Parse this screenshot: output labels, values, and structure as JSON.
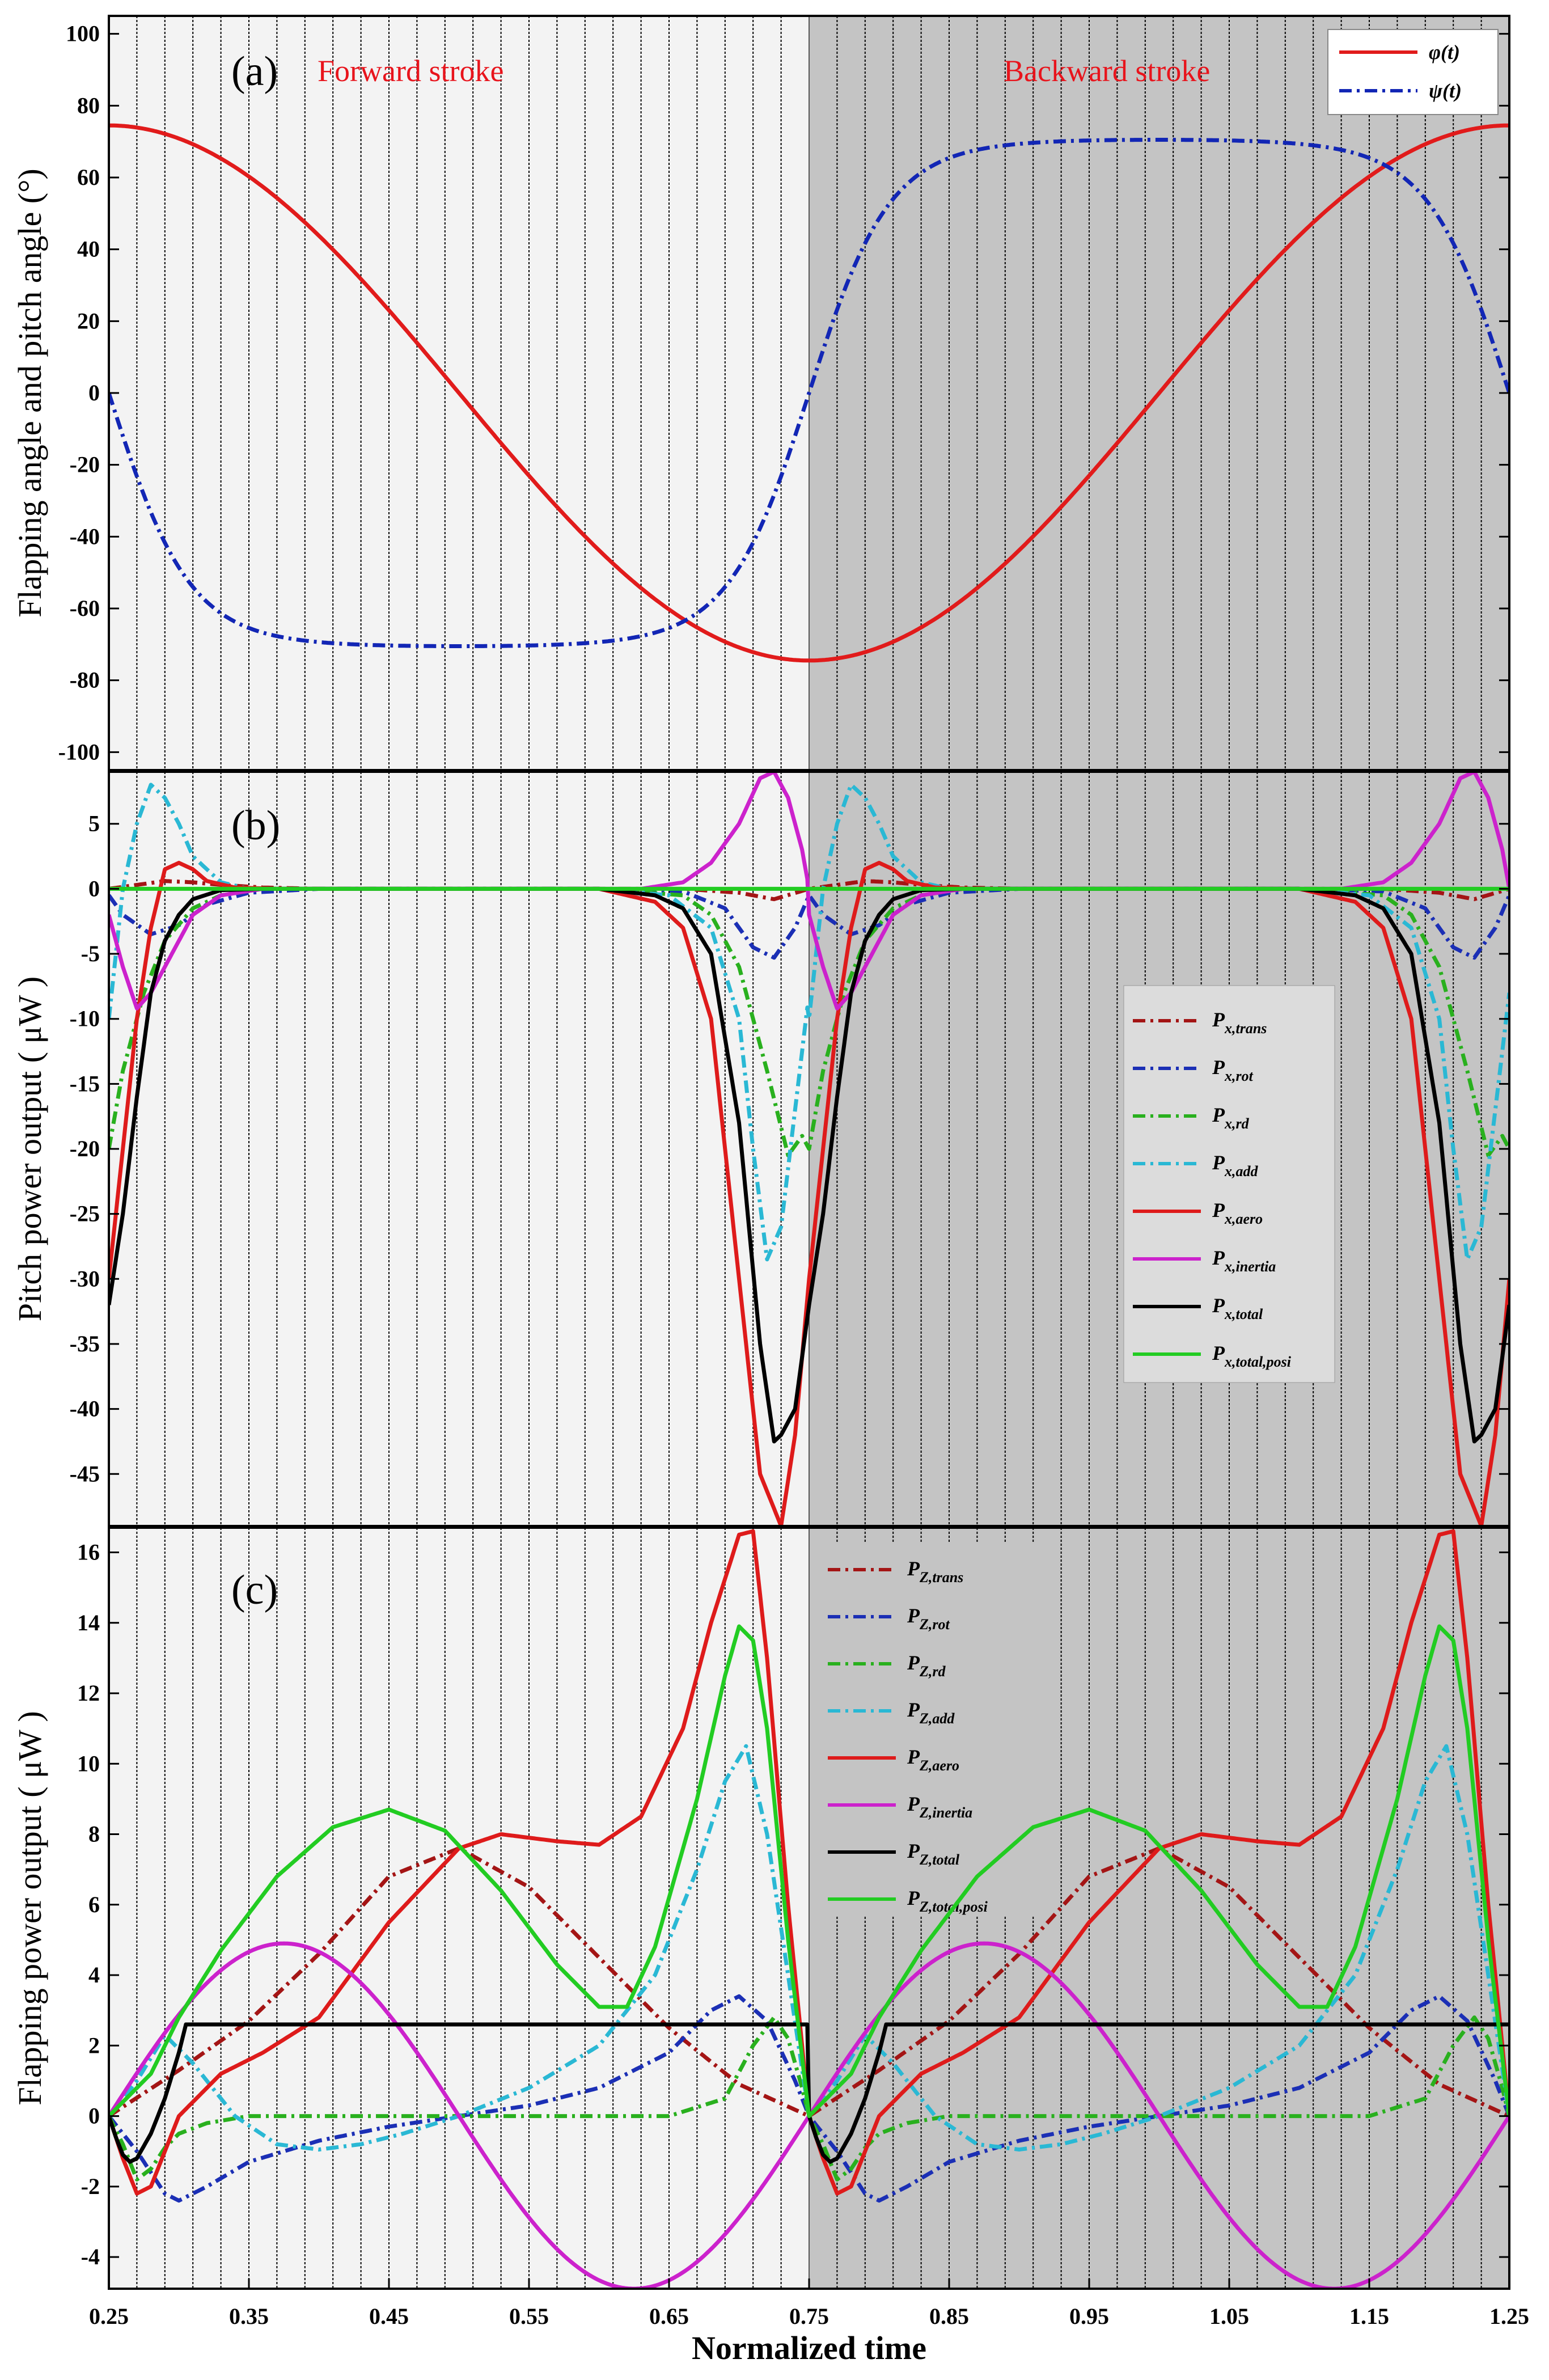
{
  "chart_data": [
    {
      "panel": "a",
      "type": "line",
      "panel_label": "(a)",
      "annotations": [
        "Forward stroke",
        "Backward stroke"
      ],
      "xlim": [
        0.25,
        1.25
      ],
      "ylim": [
        -105,
        105
      ],
      "yticks": [
        "100",
        "80",
        "60",
        "40",
        "20",
        "0",
        "-20",
        "-40",
        "-60",
        "-80",
        "-100"
      ],
      "ylabel": "Flapping angle and pitch angle (°)",
      "legend_position": "top-right",
      "series": [
        {
          "name": "φ(t)",
          "sub": "",
          "color": "#e11b1b",
          "dash": "solid",
          "model": "cos",
          "amp": 74.5,
          "phase": 0.25
        },
        {
          "name": "ψ(t)",
          "sub": "",
          "color": "#1226b5",
          "dash": "dashdot",
          "model": "tanhsin",
          "amp": 70.5,
          "k": 2.7
        }
      ]
    },
    {
      "panel": "b",
      "type": "line",
      "panel_label": "(b)",
      "xlim": [
        0.25,
        1.25
      ],
      "ylim": [
        -49,
        9
      ],
      "yticks": [
        "5",
        "0",
        "-5",
        "-10",
        "-15",
        "-20",
        "-25",
        "-30",
        "-35",
        "-40",
        "-45"
      ],
      "ylabel": "Pitch power output ( μW )",
      "legend_position": "center-right",
      "series": [
        {
          "name": "P",
          "sub": "x,trans",
          "color": "#a41515",
          "dash": "dashdot",
          "x": [
            0.25,
            0.27,
            0.29,
            0.31,
            0.33,
            0.36,
            0.4,
            0.5,
            0.6,
            0.66,
            0.7,
            0.725,
            0.75
          ],
          "y": [
            0,
            0.3,
            0.6,
            0.5,
            0.3,
            0.1,
            0,
            0,
            0,
            0,
            -0.3,
            -0.8,
            0
          ]
        },
        {
          "name": "P",
          "sub": "x,rot",
          "color": "#1b2fb5",
          "dash": "dashdot",
          "x": [
            0.25,
            0.26,
            0.28,
            0.3,
            0.32,
            0.35,
            0.4,
            0.5,
            0.6,
            0.66,
            0.69,
            0.71,
            0.725,
            0.74,
            0.75
          ],
          "y": [
            -0.5,
            -2,
            -3.5,
            -2.8,
            -1.2,
            -0.3,
            0,
            0,
            0,
            -0.2,
            -1.5,
            -4.5,
            -5.3,
            -3,
            -0.5
          ]
        },
        {
          "name": "P",
          "sub": "x,rd",
          "color": "#29b01e",
          "dash": "dashdot",
          "x": [
            0.25,
            0.26,
            0.275,
            0.29,
            0.31,
            0.33,
            0.36,
            0.4,
            0.5,
            0.6,
            0.66,
            0.68,
            0.7,
            0.72,
            0.735,
            0.745,
            0.75
          ],
          "y": [
            -20,
            -14,
            -8,
            -4,
            -1.5,
            -0.5,
            0,
            0,
            0,
            0,
            -0.5,
            -2,
            -6,
            -14,
            -20.5,
            -19,
            -20
          ]
        },
        {
          "name": "P",
          "sub": "x,add",
          "color": "#2ab8d4",
          "dash": "dashdot",
          "x": [
            0.25,
            0.26,
            0.27,
            0.28,
            0.29,
            0.3,
            0.31,
            0.33,
            0.35,
            0.4,
            0.5,
            0.6,
            0.65,
            0.68,
            0.7,
            0.71,
            0.72,
            0.73,
            0.74,
            0.75
          ],
          "y": [
            -10,
            0,
            5,
            8,
            7,
            5,
            2.5,
            0.5,
            0,
            0,
            0,
            0,
            -0.5,
            -3,
            -10,
            -20,
            -28.5,
            -26,
            -17,
            -8
          ]
        },
        {
          "name": "P",
          "sub": "x,aero",
          "color": "#de1b1b",
          "dash": "solid",
          "x": [
            0.25,
            0.26,
            0.27,
            0.28,
            0.29,
            0.3,
            0.31,
            0.32,
            0.34,
            0.37,
            0.4,
            0.5,
            0.6,
            0.64,
            0.66,
            0.68,
            0.7,
            0.715,
            0.73,
            0.74,
            0.75
          ],
          "y": [
            -30,
            -20,
            -10,
            -3,
            1.5,
            2,
            1.5,
            0.6,
            0.1,
            0,
            0,
            0,
            0,
            -1,
            -3,
            -10,
            -30,
            -45,
            -49,
            -42,
            -30
          ]
        },
        {
          "name": "P",
          "sub": "x,inertia",
          "color": "#cc22cc",
          "dash": "solid",
          "x": [
            0.25,
            0.26,
            0.27,
            0.28,
            0.29,
            0.3,
            0.31,
            0.33,
            0.36,
            0.4,
            0.5,
            0.6,
            0.63,
            0.66,
            0.68,
            0.7,
            0.715,
            0.725,
            0.735,
            0.745,
            0.75
          ],
          "y": [
            -2,
            -6,
            -9.2,
            -8,
            -6,
            -4,
            -2,
            -0.5,
            0,
            0,
            0,
            0,
            0,
            0.5,
            2,
            5,
            8.5,
            9,
            7,
            3,
            0
          ]
        },
        {
          "name": "P",
          "sub": "x,total",
          "color": "#000000",
          "dash": "solid",
          "x": [
            0.25,
            0.26,
            0.27,
            0.28,
            0.29,
            0.3,
            0.31,
            0.33,
            0.36,
            0.4,
            0.5,
            0.6,
            0.64,
            0.66,
            0.68,
            0.7,
            0.715,
            0.725,
            0.73,
            0.74,
            0.75
          ],
          "y": [
            -32,
            -25,
            -16,
            -8,
            -4,
            -2,
            -0.8,
            -0.1,
            0,
            0,
            0,
            0,
            -0.5,
            -1.5,
            -5,
            -18,
            -35,
            -42.5,
            -42,
            -40,
            -32
          ]
        },
        {
          "name": "P",
          "sub": "x,total,posi",
          "color": "#22cc22",
          "dash": "solid",
          "x": [
            0.25,
            0.75
          ],
          "y": [
            0,
            0
          ]
        }
      ]
    },
    {
      "panel": "c",
      "type": "line",
      "panel_label": "(c)",
      "xlim": [
        0.25,
        1.25
      ],
      "ylim": [
        -4.9,
        16.7
      ],
      "xticks": [
        "0.25",
        "0.35",
        "0.45",
        "0.55",
        "0.65",
        "0.75",
        "0.85",
        "0.95",
        "1.05",
        "1.15",
        "1.25"
      ],
      "yticks": [
        "16",
        "14",
        "12",
        "10",
        "8",
        "6",
        "4",
        "2",
        "0",
        "-2",
        "-4"
      ],
      "ylabel": "Flapping power output ( μW )",
      "xlabel": "Normalized time",
      "legend_position": "top-center",
      "series": [
        {
          "name": "P",
          "sub": "Z,trans",
          "color": "#a41515",
          "dash": "dashdot",
          "x": [
            0.25,
            0.3,
            0.35,
            0.4,
            0.45,
            0.5,
            0.55,
            0.6,
            0.65,
            0.7,
            0.75
          ],
          "y": [
            0,
            1.3,
            2.7,
            4.6,
            6.8,
            7.6,
            6.5,
            4.5,
            2.5,
            0.9,
            0
          ]
        },
        {
          "name": "P",
          "sub": "Z,rot",
          "color": "#1b2fb5",
          "dash": "dashdot",
          "x": [
            0.25,
            0.27,
            0.29,
            0.3,
            0.32,
            0.35,
            0.4,
            0.45,
            0.5,
            0.55,
            0.6,
            0.65,
            0.68,
            0.7,
            0.72,
            0.74,
            0.75
          ],
          "y": [
            0,
            -1,
            -2.2,
            -2.4,
            -2,
            -1.3,
            -0.7,
            -0.3,
            0,
            0.3,
            0.8,
            1.8,
            3,
            3.4,
            2.7,
            1,
            0
          ]
        },
        {
          "name": "P",
          "sub": "Z,rd",
          "color": "#29b01e",
          "dash": "dashdot",
          "x": [
            0.25,
            0.26,
            0.27,
            0.28,
            0.29,
            0.3,
            0.32,
            0.35,
            0.4,
            0.45,
            0.5,
            0.55,
            0.6,
            0.65,
            0.69,
            0.71,
            0.725,
            0.735,
            0.745,
            0.75
          ],
          "y": [
            0,
            -0.8,
            -1.8,
            -1.5,
            -0.9,
            -0.5,
            -0.2,
            0,
            0,
            0,
            0,
            0,
            0,
            0,
            0.5,
            2,
            2.8,
            2.2,
            0.8,
            0
          ]
        },
        {
          "name": "P",
          "sub": "Z,add",
          "color": "#2ab8d4",
          "dash": "dashdot",
          "x": [
            0.25,
            0.27,
            0.29,
            0.31,
            0.34,
            0.37,
            0.4,
            0.43,
            0.46,
            0.5,
            0.55,
            0.6,
            0.64,
            0.67,
            0.69,
            0.705,
            0.72,
            0.735,
            0.75
          ],
          "y": [
            0,
            1,
            2.3,
            1.5,
            0,
            -0.8,
            -0.95,
            -0.8,
            -0.5,
            0,
            0.8,
            2,
            4,
            7,
            9.5,
            10.5,
            8,
            4,
            0
          ]
        },
        {
          "name": "P",
          "sub": "Z,aero",
          "color": "#de1b1b",
          "dash": "solid",
          "x": [
            0.25,
            0.26,
            0.27,
            0.28,
            0.29,
            0.3,
            0.33,
            0.36,
            0.4,
            0.45,
            0.5,
            0.53,
            0.57,
            0.6,
            0.63,
            0.66,
            0.68,
            0.7,
            0.71,
            0.72,
            0.735,
            0.75
          ],
          "y": [
            0,
            -1.2,
            -2.2,
            -2,
            -1,
            0,
            1.2,
            1.8,
            2.8,
            5.5,
            7.6,
            8,
            7.8,
            7.7,
            8.5,
            11,
            14,
            16.5,
            16.6,
            13,
            6,
            0
          ]
        },
        {
          "name": "P",
          "sub": "Z,inertia",
          "color": "#cc22cc",
          "dash": "solid",
          "model": "sin4",
          "amp": 4.9
        },
        {
          "name": "P",
          "sub": "Z,total",
          "color": "#000000",
          "dash": "solid",
          "x": [
            0.25,
            0.255,
            0.26,
            0.265,
            0.27,
            0.28,
            0.29,
            0.3,
            0.305
          ],
          "y": [
            0,
            -0.6,
            -1.1,
            -1.3,
            -1.2,
            -0.5,
            0.5,
            1.8,
            2.6
          ]
        },
        {
          "name": "P",
          "sub": "Z,total,posi",
          "color": "#22cc22",
          "dash": "solid",
          "x": [
            0.25,
            0.28,
            0.3,
            0.33,
            0.37,
            0.41,
            0.45,
            0.49,
            0.53,
            0.57,
            0.6,
            0.62,
            0.64,
            0.67,
            0.69,
            0.7,
            0.71,
            0.72,
            0.735,
            0.75
          ],
          "y": [
            0,
            1.2,
            2.8,
            4.7,
            6.8,
            8.2,
            8.7,
            8.1,
            6.4,
            4.3,
            3.1,
            3.1,
            4.8,
            9,
            12.5,
            13.9,
            13.5,
            11,
            5,
            0
          ]
        }
      ]
    }
  ]
}
